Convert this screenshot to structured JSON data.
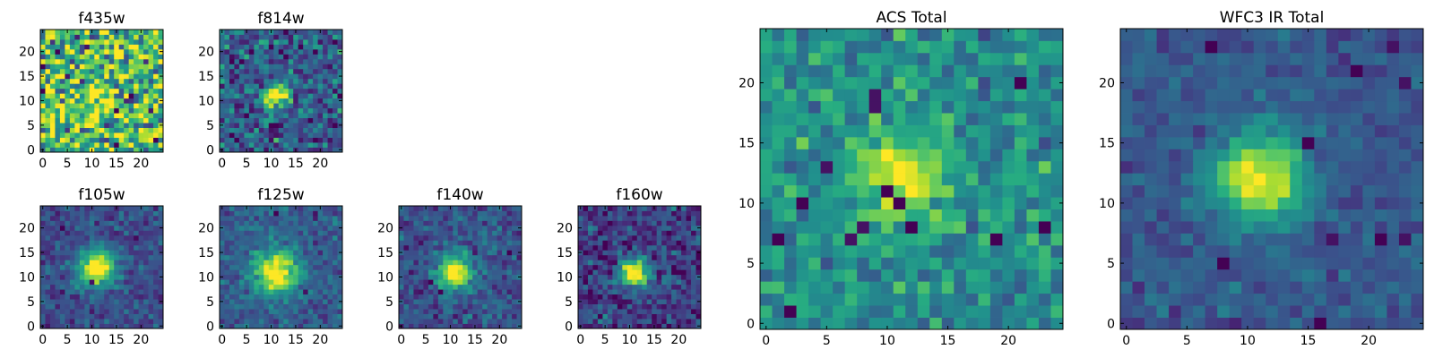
{
  "figure": {
    "description_type": "multi-panel pixel image grid",
    "colormap": "viridis"
  },
  "chart_data": [
    {
      "type": "heatmap",
      "title": "f435w",
      "size": 25,
      "center": [
        11,
        11
      ],
      "peak": 0.3,
      "sigma": 2.2,
      "noise": 0.55,
      "mean": 0.68,
      "hot_pixels": 6,
      "seed": 11,
      "xticks": [
        0,
        5,
        10,
        15,
        20
      ],
      "yticks": [
        0,
        5,
        10,
        15,
        20
      ],
      "xlim": [
        0,
        25
      ],
      "ylim": [
        0,
        25
      ]
    },
    {
      "type": "heatmap",
      "title": "f814w",
      "size": 25,
      "center": [
        11,
        11
      ],
      "peak": 0.85,
      "sigma": 1.6,
      "noise": 0.3,
      "mean": 0.3,
      "hot_pixels": 8,
      "seed": 23,
      "xticks": [
        0,
        5,
        10,
        15,
        20
      ],
      "yticks": [
        0,
        5,
        10,
        15,
        20
      ],
      "xlim": [
        0,
        25
      ],
      "ylim": [
        0,
        25
      ]
    },
    {
      "type": "heatmap",
      "title": "f105w",
      "size": 25,
      "center": [
        11,
        12
      ],
      "peak": 0.85,
      "sigma": 2.6,
      "noise": 0.16,
      "mean": 0.24,
      "hot_pixels": 3,
      "seed": 37,
      "xticks": [
        0,
        5,
        10,
        15,
        20
      ],
      "yticks": [
        0,
        5,
        10,
        15,
        20
      ],
      "xlim": [
        0,
        25
      ],
      "ylim": [
        0,
        25
      ]
    },
    {
      "type": "heatmap",
      "title": "f125w",
      "size": 25,
      "center": [
        11,
        11
      ],
      "peak": 0.8,
      "sigma": 3.0,
      "noise": 0.16,
      "mean": 0.3,
      "hot_pixels": 3,
      "seed": 41,
      "xticks": [
        0,
        5,
        10,
        15,
        20
      ],
      "yticks": [
        0,
        5,
        10,
        15,
        20
      ],
      "xlim": [
        0,
        25
      ],
      "ylim": [
        0,
        25
      ]
    },
    {
      "type": "heatmap",
      "title": "f140w",
      "size": 25,
      "center": [
        11,
        11
      ],
      "peak": 0.85,
      "sigma": 2.4,
      "noise": 0.18,
      "mean": 0.26,
      "hot_pixels": 3,
      "seed": 53,
      "xticks": [
        0,
        5,
        10,
        15,
        20
      ],
      "yticks": [
        0,
        5,
        10,
        15,
        20
      ],
      "xlim": [
        0,
        25
      ],
      "ylim": [
        0,
        25
      ]
    },
    {
      "type": "heatmap",
      "title": "f160w",
      "size": 25,
      "center": [
        11,
        11
      ],
      "peak": 0.95,
      "sigma": 2.0,
      "noise": 0.22,
      "mean": 0.2,
      "hot_pixels": 3,
      "seed": 67,
      "xticks": [
        0,
        5,
        10,
        15,
        20
      ],
      "yticks": [
        0,
        5,
        10,
        15,
        20
      ],
      "xlim": [
        0,
        25
      ],
      "ylim": [
        0,
        25
      ]
    },
    {
      "type": "heatmap",
      "title": "ACS Total",
      "size": 25,
      "center": [
        11,
        12
      ],
      "peak": 0.5,
      "sigma": 2.4,
      "noise": 0.22,
      "mean": 0.5,
      "hot_pixels": 14,
      "seed": 79,
      "xticks": [
        0,
        5,
        10,
        15,
        20
      ],
      "yticks": [
        0,
        5,
        10,
        15,
        20
      ],
      "xlim": [
        0,
        25
      ],
      "ylim": [
        0,
        25
      ]
    },
    {
      "type": "heatmap",
      "title": "WFC3 IR Total",
      "size": 25,
      "center": [
        11,
        12
      ],
      "peak": 0.75,
      "sigma": 2.5,
      "noise": 0.12,
      "mean": 0.28,
      "hot_pixels": 10,
      "seed": 97,
      "xticks": [
        0,
        5,
        10,
        15,
        20
      ],
      "yticks": [
        0,
        5,
        10,
        15,
        20
      ],
      "xlim": [
        0,
        25
      ],
      "ylim": [
        0,
        25
      ]
    }
  ]
}
